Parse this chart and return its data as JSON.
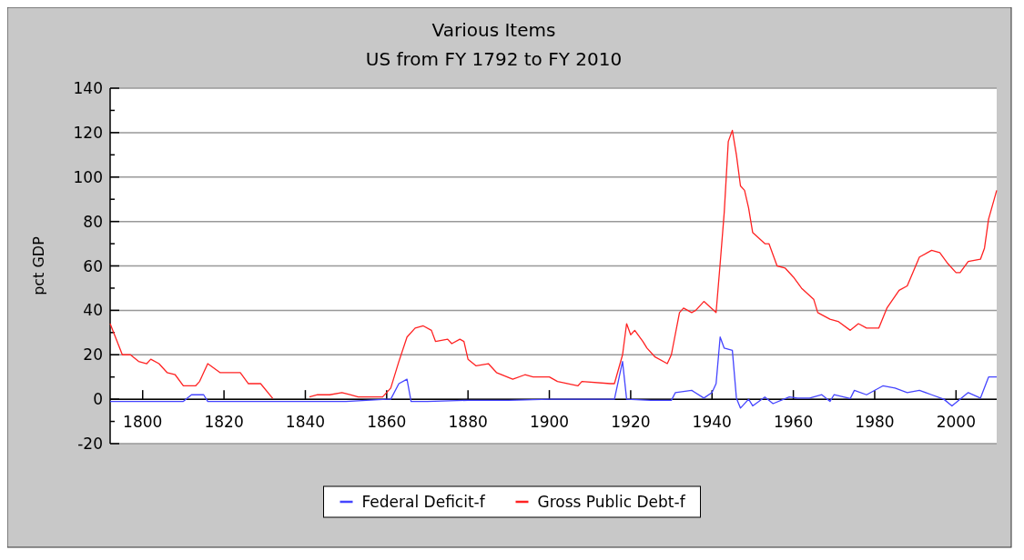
{
  "chart_data": {
    "type": "line",
    "title": "Various Items",
    "subtitle": "US from FY 1792 to FY 2010",
    "ylabel": "pct GDP",
    "xlim": [
      1792,
      2010
    ],
    "xticks": [
      1800,
      1820,
      1840,
      1860,
      1880,
      1900,
      1920,
      1940,
      1960,
      1980,
      2000
    ],
    "ylim": [
      -20,
      140
    ],
    "yticks": [
      -20,
      {
        "value": -10,
        "label": null
      },
      0,
      {
        "value": 10,
        "label": null
      },
      20,
      {
        "value": 30,
        "label": null
      },
      40,
      {
        "value": 50,
        "label": null
      },
      60,
      {
        "value": 70,
        "label": null
      },
      80,
      {
        "value": 90,
        "label": null
      },
      100,
      {
        "value": 110,
        "label": null
      },
      120,
      {
        "value": 130,
        "label": null
      },
      140
    ],
    "grid": "y",
    "legend": "bottom",
    "series": [
      {
        "name": "Federal Deficit-f",
        "color": "#4444ff",
        "x": [
          1792,
          1800,
          1805,
          1810,
          1812,
          1815,
          1816,
          1820,
          1830,
          1836,
          1840,
          1850,
          1860,
          1861,
          1863,
          1865,
          1866,
          1870,
          1880,
          1890,
          1900,
          1916,
          1918,
          1919,
          1925,
          1930,
          1931,
          1935,
          1938,
          1940,
          1941,
          1942,
          1943,
          1945,
          1946,
          1947,
          1949,
          1950,
          1953,
          1955,
          1959,
          1961,
          1964,
          1967,
          1969,
          1970,
          1974,
          1975,
          1978,
          1982,
          1985,
          1988,
          1991,
          1994,
          1997,
          1999,
          2003,
          2006,
          2008,
          2010
        ],
        "values": [
          -1,
          -1,
          -1,
          -1,
          2,
          2,
          -1,
          -1,
          -1,
          -1,
          -1,
          -1,
          0,
          0,
          7,
          9,
          -1,
          -1,
          -0.5,
          -0.5,
          0,
          0,
          17,
          0,
          -0.5,
          -0.5,
          3,
          4,
          0.5,
          3,
          7,
          28,
          23,
          22,
          0.5,
          -4,
          0,
          -3,
          1,
          -2,
          1,
          0.5,
          0.5,
          2,
          -1,
          2,
          0.3,
          4,
          2,
          6,
          5,
          3,
          4,
          2,
          0,
          -3,
          3,
          0.5,
          10,
          10
        ]
      },
      {
        "name": "Gross Public Debt-f",
        "color": "#ff2222",
        "x": [
          1792,
          1795,
          1797,
          1799,
          1801,
          1802,
          1804,
          1806,
          1808,
          1810,
          1813,
          1814,
          1816,
          1819,
          1824,
          1826,
          1829,
          1832,
          1835,
          1838,
          1841,
          1843,
          1846,
          1849,
          1851,
          1853,
          1859,
          1861,
          1863,
          1865,
          1867,
          1869,
          1871,
          1872,
          1875,
          1876,
          1878,
          1879,
          1880,
          1882,
          1885,
          1887,
          1891,
          1894,
          1896,
          1900,
          1902,
          1907,
          1908,
          1915,
          1916,
          1918,
          1919,
          1920,
          1921,
          1923,
          1924,
          1926,
          1929,
          1930,
          1932,
          1933,
          1935,
          1936,
          1938,
          1941,
          1942,
          1943,
          1944,
          1945,
          1946,
          1947,
          1948,
          1949,
          1950,
          1953,
          1954,
          1956,
          1958,
          1960,
          1962,
          1965,
          1966,
          1969,
          1971,
          1974,
          1976,
          1978,
          1981,
          1983,
          1986,
          1988,
          1991,
          1994,
          1996,
          1998,
          2000,
          2001,
          2003,
          2006,
          2007,
          2008,
          2010
        ],
        "values": [
          34,
          20,
          20,
          17,
          16,
          18,
          16,
          12,
          11,
          6,
          6,
          8,
          16,
          12,
          12,
          7,
          7,
          0.3,
          null,
          null,
          1,
          2,
          2,
          3,
          2,
          1,
          1,
          5,
          17,
          28,
          32,
          33,
          31,
          26,
          27,
          25,
          27,
          26,
          18,
          15,
          16,
          12,
          9,
          11,
          10,
          10,
          8,
          6,
          8,
          7,
          7,
          20,
          34,
          29,
          31,
          26,
          23,
          19,
          16,
          20,
          39,
          41,
          39,
          40,
          44,
          39,
          61,
          84,
          116,
          121,
          110,
          96,
          94,
          86,
          75,
          70,
          70,
          60,
          59,
          55,
          50,
          45,
          39,
          36,
          35,
          31,
          34,
          32,
          32,
          41,
          49,
          51,
          64,
          67,
          66,
          61,
          57,
          57,
          62,
          63,
          68,
          81,
          94
        ]
      }
    ]
  }
}
